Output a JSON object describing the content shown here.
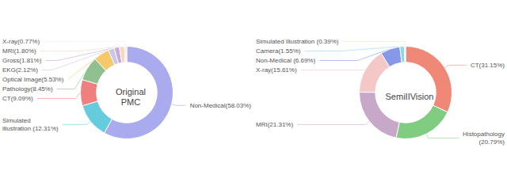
{
  "chart_data": [
    {
      "type": "pie",
      "title": "Original\nPMC",
      "categories": [
        "Non-Medical(58.03%)",
        "Simulated\nillustration (12.31%)",
        "CT(9.09%)",
        "Pathology(8.45%)",
        "Optical Image(5.53%)",
        "EKG(2.12%)",
        "Gross(1.81%)",
        "MRI(1.80%)",
        "X-ray(0.77%)"
      ],
      "values": [
        58.03,
        12.31,
        9.09,
        8.45,
        5.53,
        2.12,
        1.81,
        1.8,
        0.77
      ],
      "colors": [
        "#aaaaee",
        "#66ccdd",
        "#f08080",
        "#90c090",
        "#f5c96a",
        "#c8c8e8",
        "#c8a8d8",
        "#f5d8c0",
        "#fde8e8"
      ]
    },
    {
      "type": "pie",
      "title": "SemiIIVision",
      "categories": [
        "CT(31.15%)",
        "Histopathology\n(20.79%)",
        "MRI(21.31%)",
        "X-ray(15.61%)",
        "Non-Medical (6.69%)",
        "Camera(1.55%)",
        "Simulated Illustration (0.39%)"
      ],
      "values": [
        31.15,
        20.79,
        21.31,
        15.61,
        6.69,
        1.55,
        0.39
      ],
      "colors": [
        "#f08878",
        "#80cc80",
        "#c8a8c8",
        "#f5c8c8",
        "#8898e8",
        "#88d8ee",
        "#f0e8d8"
      ]
    }
  ]
}
